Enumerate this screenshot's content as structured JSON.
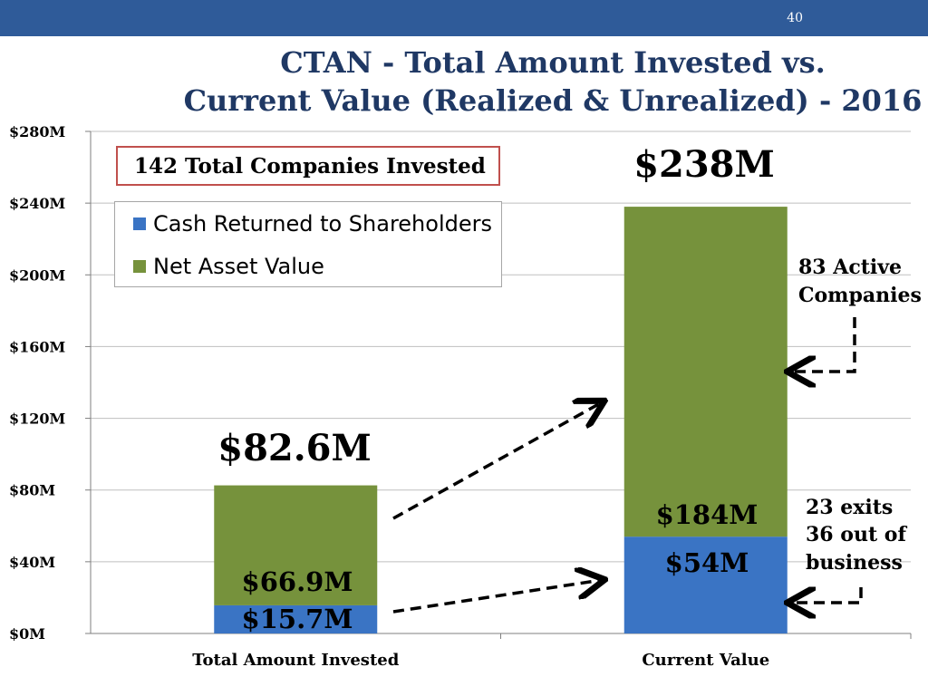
{
  "page_number": "40",
  "title_lines": [
    "CTAN - Total Amount Invested vs.",
    "Current Value (Realized & Unrealized) - 2016"
  ],
  "companies_box": "142 Total Companies Invested",
  "colors": {
    "header_bar": "#2f5b99",
    "title": "#1f3864",
    "cash": "#3a74c4",
    "nav": "#76923c",
    "box_border": "#c0504d"
  },
  "annotations": {
    "invested_total": "$82.6M",
    "invested_nav": "$66.9M",
    "invested_cash": "$15.7M",
    "current_total": "$238M",
    "current_nav": "$184M",
    "current_cash": "$54M",
    "active_line1": "83 Active",
    "active_line2": "Companies",
    "exits_line1": "23 exits",
    "exits_line2": "36 out of",
    "exits_line3": "business"
  },
  "chart_data": {
    "type": "bar",
    "stacked": true,
    "categories": [
      "Total Amount Invested",
      "Current Value"
    ],
    "series": [
      {
        "name": "Cash Returned to Shareholders",
        "values": [
          15.7,
          54
        ],
        "color": "#3a74c4"
      },
      {
        "name": "Net Asset Value",
        "values": [
          66.9,
          184
        ],
        "color": "#76923c"
      }
    ],
    "y_ticks": [
      "$0M",
      "$40M",
      "$80M",
      "$120M",
      "$160M",
      "$200M",
      "$240M",
      "$280M"
    ],
    "ylim": [
      0,
      280
    ],
    "grid": true,
    "legend_position": "top-left"
  }
}
